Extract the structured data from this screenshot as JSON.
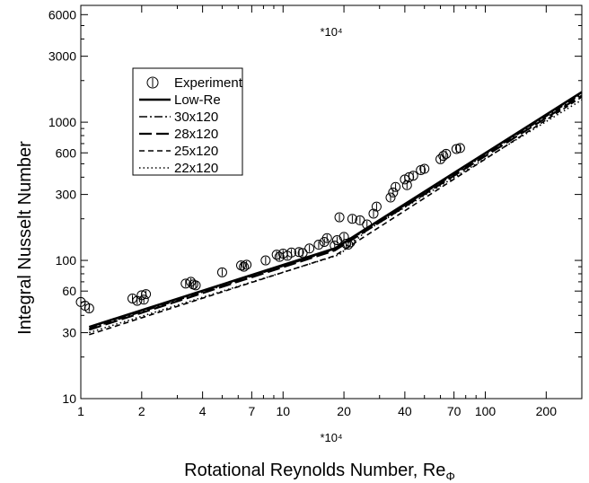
{
  "chart_data": {
    "type": "line",
    "xlabel": "Rotational Reynolds Number, Re",
    "xlabel_subscript": "Φ",
    "ylabel": "Integral Nusselt Number",
    "x_multiplier_top": "*10⁴",
    "x_multiplier_bottom": "*10⁴",
    "x_scale": "log",
    "y_scale": "log",
    "xlim": [
      1,
      300
    ],
    "ylim": [
      10,
      7000
    ],
    "x_tick_labels": [
      {
        "value": 1,
        "label": "1"
      },
      {
        "value": 2,
        "label": "2"
      },
      {
        "value": 4,
        "label": "4"
      },
      {
        "value": 7,
        "label": "7"
      },
      {
        "value": 10,
        "label": "10"
      },
      {
        "value": 20,
        "label": "20"
      },
      {
        "value": 40,
        "label": "40"
      },
      {
        "value": 70,
        "label": "70"
      },
      {
        "value": 100,
        "label": "100"
      },
      {
        "value": 200,
        "label": "200"
      }
    ],
    "y_tick_labels": [
      {
        "value": 10,
        "label": "10"
      },
      {
        "value": 30,
        "label": "30"
      },
      {
        "value": 60,
        "label": "60"
      },
      {
        "value": 100,
        "label": "100"
      },
      {
        "value": 300,
        "label": "300"
      },
      {
        "value": 600,
        "label": "600"
      },
      {
        "value": 1000,
        "label": "1000"
      },
      {
        "value": 3000,
        "label": "3000"
      },
      {
        "value": 6000,
        "label": "6000"
      }
    ],
    "legend": {
      "position": "top-left",
      "entries": [
        {
          "label": "Experiment",
          "style": "marker"
        },
        {
          "label": "Low-Re",
          "style": "solid"
        },
        {
          "label": "30x120",
          "style": "dashdot"
        },
        {
          "label": "28x120",
          "style": "longdash"
        },
        {
          "label": "25x120",
          "style": "dash"
        },
        {
          "label": "22x120",
          "style": "dot"
        }
      ]
    },
    "series": [
      {
        "name": "Low-Re",
        "style": "solid",
        "width": 2.6,
        "x": [
          1.1,
          18,
          300
        ],
        "y": [
          33,
          122,
          1650
        ]
      },
      {
        "name": "30x120",
        "style": "dashdot",
        "width": 1.6,
        "x": [
          1.1,
          18,
          300
        ],
        "y": [
          32,
          120,
          1600
        ]
      },
      {
        "name": "28x120",
        "style": "longdash",
        "width": 2.2,
        "x": [
          1.1,
          18,
          300
        ],
        "y": [
          31.5,
          118,
          1560
        ]
      },
      {
        "name": "25x120",
        "style": "dash",
        "width": 1.6,
        "x": [
          1.1,
          18,
          300
        ],
        "y": [
          29,
          108,
          1520
        ]
      },
      {
        "name": "22x120",
        "style": "dot",
        "width": 1.6,
        "x": [
          1.1,
          19,
          26,
          300
        ],
        "y": [
          30,
          110,
          165,
          1450
        ]
      },
      {
        "name": "Experiment",
        "style": "marker",
        "x": [
          1.0,
          1.05,
          1.1,
          1.8,
          1.9,
          2.0,
          2.05,
          2.1,
          3.3,
          3.5,
          3.6,
          3.7,
          5.0,
          6.2,
          6.4,
          6.6,
          8.2,
          9.3,
          9.6,
          10.0,
          10.5,
          11.0,
          12.0,
          12.5,
          13.5,
          15.0,
          16.0,
          16.5,
          18.0,
          18.5,
          19.0,
          20.0,
          20.5,
          21.0,
          21.5,
          22.0,
          24.0,
          26.0,
          28.0,
          29.0,
          34.0,
          35.0,
          36.0,
          40.0,
          41.0,
          42.0,
          44.0,
          48.0,
          50.0,
          60.0,
          62.0,
          64.0,
          72.0,
          75.0
        ],
        "y": [
          50,
          47,
          45,
          53,
          51,
          56,
          52,
          57,
          68,
          70,
          67,
          66,
          82,
          92,
          90,
          93,
          100,
          110,
          106,
          112,
          108,
          114,
          115,
          113,
          122,
          130,
          136,
          145,
          128,
          140,
          205,
          148,
          132,
          130,
          135,
          200,
          195,
          182,
          218,
          245,
          285,
          310,
          340,
          385,
          350,
          400,
          410,
          450,
          460,
          540,
          570,
          590,
          640,
          650
        ]
      }
    ]
  }
}
